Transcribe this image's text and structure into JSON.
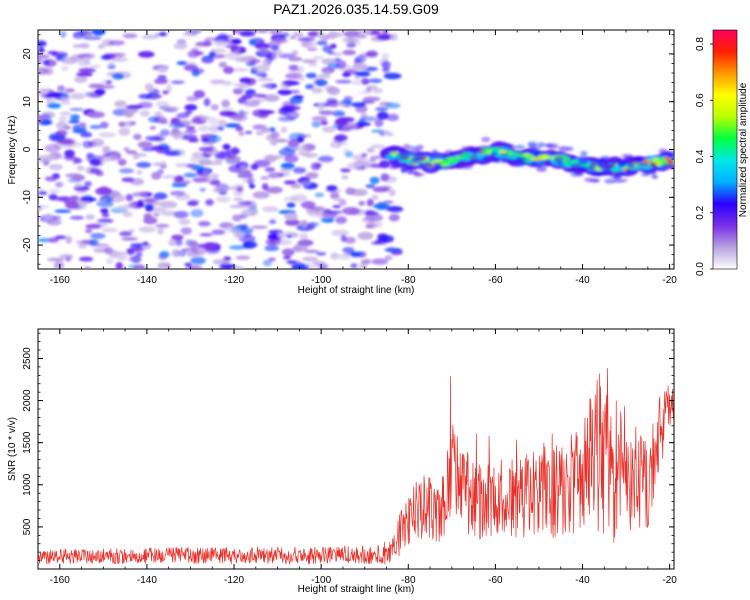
{
  "figure_title": "PAZ1.2026.035.14.59.G09",
  "chart_data": [
    {
      "type": "heatmap",
      "title": "PAZ1.2026.035.14.59.G09",
      "xlabel": "Height of straight line (km)",
      "ylabel": "Frequency (Hz)",
      "xlim": [
        -165,
        -19
      ],
      "ylim": [
        -25,
        25
      ],
      "xticks": [
        -160,
        -140,
        -120,
        -100,
        -80,
        -60,
        -40,
        -20
      ],
      "yticks": [
        -20,
        -10,
        0,
        10,
        20
      ],
      "noise_region_x": [
        -165,
        -84
      ],
      "signal_region_x": [
        -84,
        -19
      ],
      "signal_track": {
        "x": [
          -84,
          -80,
          -75,
          -70,
          -65,
          -60,
          -55,
          -50,
          -45,
          -40,
          -35,
          -30,
          -25,
          -20,
          -19
        ],
        "frequency": [
          -1.0,
          -2.0,
          -2.8,
          -2.5,
          -1.2,
          -0.5,
          -1.5,
          -1.8,
          -2.3,
          -3.2,
          -3.8,
          -3.6,
          -3.0,
          -2.2,
          -2.0
        ],
        "peak_amplitude": [
          0.35,
          0.55,
          0.7,
          0.55,
          0.45,
          0.6,
          0.5,
          0.55,
          0.6,
          0.45,
          0.55,
          0.5,
          0.6,
          0.7,
          0.65
        ]
      },
      "colorbar": {
        "label": "Normalized spectral amplitude",
        "range": [
          0.0,
          0.85
        ],
        "ticks": [
          0.0,
          0.2,
          0.4,
          0.6,
          0.8
        ],
        "colors": [
          "#ffffff",
          "#b8a2e0",
          "#7a2fe8",
          "#2a00ff",
          "#00b0ff",
          "#00e8e8",
          "#00ff40",
          "#b8ff00",
          "#ffff00",
          "#ff9900",
          "#ff2000",
          "#ff0060"
        ]
      }
    },
    {
      "type": "line",
      "xlabel": "Height of straight line (km)",
      "ylabel": "SNR (10 * v/v)",
      "xlim": [
        -165,
        -19
      ],
      "ylim": [
        0,
        2850
      ],
      "xticks": [
        -160,
        -140,
        -120,
        -100,
        -80,
        -60,
        -40,
        -20
      ],
      "yticks": [
        500,
        1000,
        1500,
        2000,
        2500
      ],
      "line_color": "#e8302a",
      "series": [
        {
          "name": "SNR",
          "envelope_x": [
            -165,
            -150,
            -130,
            -110,
            -90,
            -84,
            -82,
            -80,
            -78,
            -75,
            -72,
            -70,
            -65,
            -60,
            -55,
            -50,
            -47,
            -45,
            -40,
            -38,
            -36,
            -33,
            -31,
            -28,
            -25,
            -23,
            -20,
            -19
          ],
          "envelope_mean": [
            150,
            150,
            160,
            160,
            170,
            200,
            400,
            600,
            700,
            750,
            700,
            1200,
            800,
            800,
            850,
            900,
            1000,
            900,
            1100,
            1300,
            1400,
            1000,
            1500,
            1000,
            1000,
            1500,
            1900,
            2000
          ],
          "envelope_spread": [
            90,
            90,
            100,
            100,
            110,
            150,
            250,
            350,
            350,
            400,
            400,
            600,
            450,
            450,
            500,
            500,
            650,
            550,
            650,
            900,
            1000,
            800,
            1000,
            700,
            600,
            500,
            300,
            250
          ]
        }
      ]
    }
  ]
}
